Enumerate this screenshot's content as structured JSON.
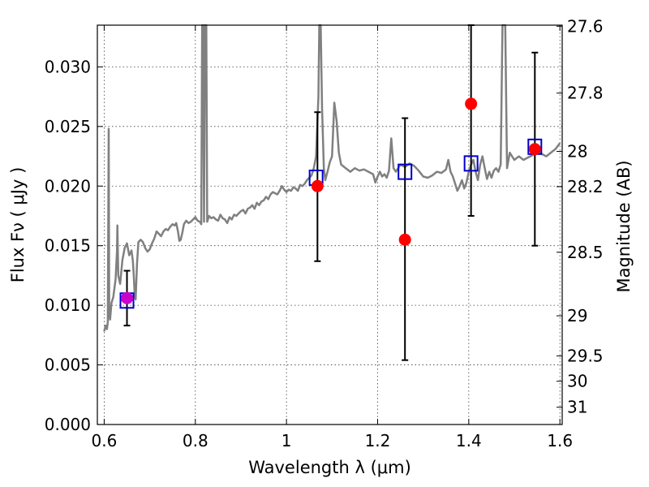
{
  "chart_data": {
    "type": "line",
    "xlabel": "Wavelength  λ (μm)",
    "ylabel": "Flux  Fν  ( μJy )",
    "ylabel_right": "Magnitude (AB)",
    "xlim": [
      0.585,
      1.605
    ],
    "ylim": [
      0.0,
      0.0335
    ],
    "grid": true,
    "x_ticks": [
      {
        "value": 0.6,
        "label": "0.6"
      },
      {
        "value": 0.8,
        "label": "0.8"
      },
      {
        "value": 1.0,
        "label": "1"
      },
      {
        "value": 1.2,
        "label": "1.2"
      },
      {
        "value": 1.4,
        "label": "1.4"
      },
      {
        "value": 1.6,
        "label": "1.6"
      }
    ],
    "y_ticks": [
      {
        "value": 0.0,
        "label": "0.000"
      },
      {
        "value": 0.005,
        "label": "0.005"
      },
      {
        "value": 0.01,
        "label": "0.010"
      },
      {
        "value": 0.015,
        "label": "0.015"
      },
      {
        "value": 0.02,
        "label": "0.020"
      },
      {
        "value": 0.025,
        "label": "0.025"
      },
      {
        "value": 0.03,
        "label": "0.030"
      }
    ],
    "y_right_ticks": [
      {
        "flux": 0.03341,
        "label": "27.6"
      },
      {
        "flux": 0.0278,
        "label": "27.8"
      },
      {
        "flux": 0.02291,
        "label": "28"
      },
      {
        "flux": 0.01995,
        "label": "28.2"
      },
      {
        "flux": 0.01445,
        "label": "28.5"
      },
      {
        "flux": 0.00912,
        "label": "29"
      },
      {
        "flux": 0.00575,
        "label": "29.5"
      },
      {
        "flux": 0.00363,
        "label": "30"
      },
      {
        "flux": 0.00145,
        "label": "31"
      }
    ],
    "spectrum": {
      "color": "#808080",
      "points": [
        [
          0.6,
          0.0078
        ],
        [
          0.603,
          0.0083
        ],
        [
          0.606,
          0.008
        ],
        [
          0.608,
          0.0086
        ],
        [
          0.61,
          0.0248
        ],
        [
          0.611,
          0.0095
        ],
        [
          0.613,
          0.0088
        ],
        [
          0.616,
          0.0102
        ],
        [
          0.62,
          0.0107
        ],
        [
          0.625,
          0.0122
        ],
        [
          0.628,
          0.0145
        ],
        [
          0.629,
          0.0167
        ],
        [
          0.631,
          0.0125
        ],
        [
          0.635,
          0.0118
        ],
        [
          0.64,
          0.0138
        ],
        [
          0.645,
          0.0148
        ],
        [
          0.65,
          0.0152
        ],
        [
          0.655,
          0.0142
        ],
        [
          0.66,
          0.0146
        ],
        [
          0.663,
          0.0137
        ],
        [
          0.665,
          0.0125
        ],
        [
          0.667,
          0.0108
        ],
        [
          0.669,
          0.0105
        ],
        [
          0.672,
          0.0135
        ],
        [
          0.675,
          0.0153
        ],
        [
          0.68,
          0.0155
        ],
        [
          0.685,
          0.0153
        ],
        [
          0.69,
          0.0148
        ],
        [
          0.695,
          0.0145
        ],
        [
          0.7,
          0.0147
        ],
        [
          0.705,
          0.0152
        ],
        [
          0.71,
          0.0156
        ],
        [
          0.715,
          0.0162
        ],
        [
          0.72,
          0.016
        ],
        [
          0.725,
          0.0158
        ],
        [
          0.73,
          0.0162
        ],
        [
          0.735,
          0.0164
        ],
        [
          0.74,
          0.0163
        ],
        [
          0.745,
          0.0166
        ],
        [
          0.75,
          0.0168
        ],
        [
          0.755,
          0.0167
        ],
        [
          0.758,
          0.0169
        ],
        [
          0.762,
          0.0162
        ],
        [
          0.765,
          0.0154
        ],
        [
          0.768,
          0.0155
        ],
        [
          0.772,
          0.0162
        ],
        [
          0.775,
          0.0168
        ],
        [
          0.78,
          0.0171
        ],
        [
          0.785,
          0.0169
        ],
        [
          0.79,
          0.017
        ],
        [
          0.795,
          0.0172
        ],
        [
          0.8,
          0.0174
        ],
        [
          0.805,
          0.0171
        ],
        [
          0.81,
          0.017
        ],
        [
          0.813,
          0.0168
        ],
        [
          0.815,
          0.0335
        ],
        [
          0.817,
          0.0335
        ],
        [
          0.819,
          0.017
        ],
        [
          0.821,
          0.0335
        ],
        [
          0.824,
          0.0335
        ],
        [
          0.826,
          0.017
        ],
        [
          0.83,
          0.0175
        ],
        [
          0.835,
          0.0173
        ],
        [
          0.84,
          0.0174
        ],
        [
          0.845,
          0.0172
        ],
        [
          0.85,
          0.0171
        ],
        [
          0.855,
          0.0176
        ],
        [
          0.86,
          0.0173
        ],
        [
          0.865,
          0.0172
        ],
        [
          0.87,
          0.0169
        ],
        [
          0.875,
          0.0174
        ],
        [
          0.88,
          0.0172
        ],
        [
          0.885,
          0.0176
        ],
        [
          0.89,
          0.0175
        ],
        [
          0.895,
          0.0177
        ],
        [
          0.9,
          0.0179
        ],
        [
          0.905,
          0.018
        ],
        [
          0.91,
          0.0177
        ],
        [
          0.915,
          0.0181
        ],
        [
          0.92,
          0.0182
        ],
        [
          0.925,
          0.0184
        ],
        [
          0.93,
          0.0181
        ],
        [
          0.935,
          0.0186
        ],
        [
          0.94,
          0.0184
        ],
        [
          0.945,
          0.0187
        ],
        [
          0.95,
          0.0188
        ],
        [
          0.955,
          0.0191
        ],
        [
          0.96,
          0.0189
        ],
        [
          0.965,
          0.0193
        ],
        [
          0.97,
          0.0195
        ],
        [
          0.975,
          0.0194
        ],
        [
          0.98,
          0.0193
        ],
        [
          0.985,
          0.0196
        ],
        [
          0.99,
          0.02
        ],
        [
          0.995,
          0.0197
        ],
        [
          1.0,
          0.0195
        ],
        [
          1.005,
          0.0197
        ],
        [
          1.01,
          0.0196
        ],
        [
          1.015,
          0.0199
        ],
        [
          1.02,
          0.0198
        ],
        [
          1.025,
          0.0196
        ],
        [
          1.03,
          0.0201
        ],
        [
          1.035,
          0.02
        ],
        [
          1.04,
          0.0202
        ],
        [
          1.045,
          0.0205
        ],
        [
          1.05,
          0.0207
        ],
        [
          1.055,
          0.0209
        ],
        [
          1.06,
          0.0215
        ],
        [
          1.065,
          0.0225
        ],
        [
          1.07,
          0.0275
        ],
        [
          1.072,
          0.0335
        ],
        [
          1.075,
          0.0335
        ],
        [
          1.078,
          0.0265
        ],
        [
          1.082,
          0.0215
        ],
        [
          1.085,
          0.0205
        ],
        [
          1.09,
          0.0212
        ],
        [
          1.095,
          0.022
        ],
        [
          1.1,
          0.0225
        ],
        [
          1.105,
          0.027
        ],
        [
          1.11,
          0.0255
        ],
        [
          1.115,
          0.0228
        ],
        [
          1.12,
          0.0218
        ],
        [
          1.13,
          0.0215
        ],
        [
          1.14,
          0.0212
        ],
        [
          1.15,
          0.0215
        ],
        [
          1.16,
          0.0213
        ],
        [
          1.17,
          0.0214
        ],
        [
          1.18,
          0.0212
        ],
        [
          1.19,
          0.021
        ],
        [
          1.195,
          0.0203
        ],
        [
          1.2,
          0.0208
        ],
        [
          1.205,
          0.0212
        ],
        [
          1.21,
          0.0208
        ],
        [
          1.215,
          0.021
        ],
        [
          1.22,
          0.0207
        ],
        [
          1.225,
          0.0213
        ],
        [
          1.23,
          0.024
        ],
        [
          1.235,
          0.0215
        ],
        [
          1.24,
          0.0212
        ],
        [
          1.25,
          0.0218
        ],
        [
          1.26,
          0.0216
        ],
        [
          1.27,
          0.0219
        ],
        [
          1.28,
          0.0217
        ],
        [
          1.29,
          0.0213
        ],
        [
          1.3,
          0.0208
        ],
        [
          1.31,
          0.0207
        ],
        [
          1.32,
          0.0209
        ],
        [
          1.33,
          0.0212
        ],
        [
          1.34,
          0.0211
        ],
        [
          1.35,
          0.0214
        ],
        [
          1.355,
          0.0222
        ],
        [
          1.36,
          0.0212
        ],
        [
          1.365,
          0.0208
        ],
        [
          1.37,
          0.0202
        ],
        [
          1.375,
          0.0196
        ],
        [
          1.38,
          0.02
        ],
        [
          1.385,
          0.0205
        ],
        [
          1.39,
          0.0198
        ],
        [
          1.395,
          0.0203
        ],
        [
          1.4,
          0.0212
        ],
        [
          1.405,
          0.0218
        ],
        [
          1.41,
          0.0222
        ],
        [
          1.415,
          0.0212
        ],
        [
          1.42,
          0.0205
        ],
        [
          1.425,
          0.0218
        ],
        [
          1.43,
          0.0225
        ],
        [
          1.435,
          0.0215
        ],
        [
          1.44,
          0.0206
        ],
        [
          1.445,
          0.0212
        ],
        [
          1.45,
          0.0207
        ],
        [
          1.455,
          0.0213
        ],
        [
          1.46,
          0.0215
        ],
        [
          1.465,
          0.0212
        ],
        [
          1.47,
          0.0218
        ],
        [
          1.474,
          0.0335
        ],
        [
          1.48,
          0.0335
        ],
        [
          1.484,
          0.0215
        ],
        [
          1.49,
          0.0228
        ],
        [
          1.495,
          0.0225
        ],
        [
          1.5,
          0.0222
        ],
        [
          1.51,
          0.0225
        ],
        [
          1.52,
          0.0222
        ],
        [
          1.53,
          0.0224
        ],
        [
          1.54,
          0.0226
        ],
        [
          1.55,
          0.0229
        ],
        [
          1.56,
          0.0227
        ],
        [
          1.57,
          0.0225
        ],
        [
          1.58,
          0.0228
        ],
        [
          1.59,
          0.0231
        ],
        [
          1.6,
          0.0236
        ]
      ]
    },
    "error_bars": [
      {
        "x": 0.65,
        "y": 0.0106,
        "ylow": 0.0083,
        "yhigh": 0.0129
      },
      {
        "x": 1.068,
        "y": 0.02,
        "ylow": 0.0137,
        "yhigh": 0.0262
      },
      {
        "x": 1.26,
        "y": 0.0155,
        "ylow": 0.0054,
        "yhigh": 0.0257
      },
      {
        "x": 1.405,
        "y": 0.0269,
        "ylow": 0.0175,
        "yhigh": 0.0335
      },
      {
        "x": 1.545,
        "y": 0.0231,
        "ylow": 0.015,
        "yhigh": 0.0312
      }
    ],
    "observed_points": {
      "color": "#ff0000",
      "marker": "circle",
      "points": [
        {
          "x": 0.65,
          "y": 0.0106,
          "color": "#cc00cc"
        },
        {
          "x": 1.068,
          "y": 0.02
        },
        {
          "x": 1.26,
          "y": 0.0155
        },
        {
          "x": 1.405,
          "y": 0.0269
        },
        {
          "x": 1.545,
          "y": 0.0231
        }
      ]
    },
    "model_points": {
      "color": "#0000cc",
      "marker": "open-square",
      "points": [
        {
          "x": 0.65,
          "y": 0.0104
        },
        {
          "x": 1.065,
          "y": 0.0207
        },
        {
          "x": 1.26,
          "y": 0.0212
        },
        {
          "x": 1.405,
          "y": 0.0219
        },
        {
          "x": 1.545,
          "y": 0.0233
        }
      ]
    }
  }
}
